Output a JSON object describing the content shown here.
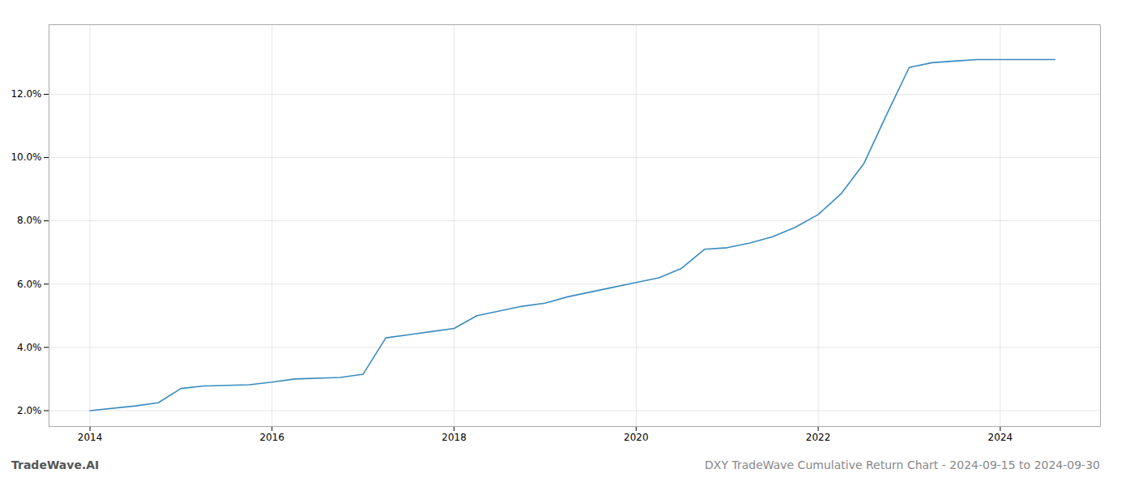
{
  "chart_data": {
    "type": "line",
    "title": "DXY TradeWave Cumulative Return Chart - 2024-09-15 to 2024-09-30",
    "annotations": [
      "TradeWave.AI"
    ],
    "x": [
      2014.0,
      2014.5,
      2014.75,
      2015.0,
      2015.25,
      2015.75,
      2016.0,
      2016.25,
      2016.75,
      2017.0,
      2017.25,
      2017.75,
      2018.0,
      2018.25,
      2018.75,
      2019.0,
      2019.25,
      2019.75,
      2020.0,
      2020.25,
      2020.5,
      2020.75,
      2021.0,
      2021.25,
      2021.5,
      2021.75,
      2022.0,
      2022.25,
      2022.5,
      2022.75,
      2023.0,
      2023.25,
      2023.5,
      2023.75,
      2024.0,
      2024.25,
      2024.6
    ],
    "values": [
      2.0,
      2.15,
      2.25,
      2.7,
      2.78,
      2.82,
      2.9,
      3.0,
      3.05,
      3.15,
      4.3,
      4.5,
      4.6,
      5.0,
      5.3,
      5.4,
      5.6,
      5.9,
      6.05,
      6.2,
      6.5,
      7.1,
      7.15,
      7.3,
      7.5,
      7.8,
      8.2,
      8.85,
      9.8,
      11.35,
      12.85,
      13.0,
      13.05,
      13.1,
      13.1,
      13.1,
      13.1
    ],
    "color": "#3a8bbf",
    "xlim": [
      2013.55,
      2025.1
    ],
    "xticks": [
      2014,
      2016,
      2018,
      2020,
      2022,
      2024
    ],
    "ylim": [
      1.5,
      14.2
    ],
    "yticks": [
      {
        "value": 2.0,
        "label": "2.0%"
      },
      {
        "value": 4.0,
        "label": "4.0%"
      },
      {
        "value": 6.0,
        "label": "6.0%"
      },
      {
        "value": 8.0,
        "label": "8.0%"
      },
      {
        "value": 10.0,
        "label": "10.0%"
      },
      {
        "value": 12.0,
        "label": "12.0%"
      }
    ],
    "grid": true
  }
}
